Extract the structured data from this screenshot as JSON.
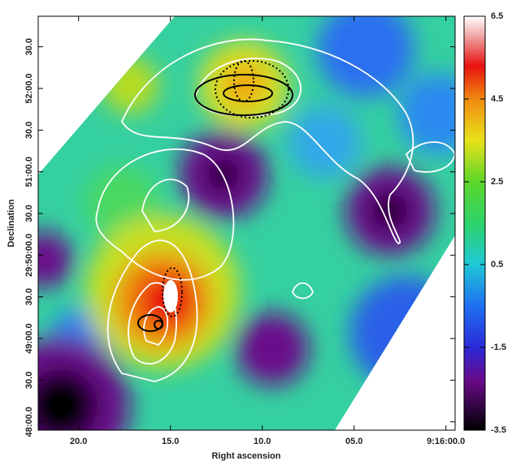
{
  "chart_data": {
    "type": "heatmap",
    "xlabel": "Right ascension",
    "ylabel": "Declination",
    "xlim": [
      22.2,
      -0.5
    ],
    "xticks": [
      {
        "value": 20,
        "label": "20.0"
      },
      {
        "value": 15,
        "label": "15.0"
      },
      {
        "value": 10,
        "label": "10.0"
      },
      {
        "value": 5,
        "label": "05.0"
      },
      {
        "value": 0,
        "label": "9:16:00.0"
      }
    ],
    "ylim": [
      -6,
      292
    ],
    "yticks": [
      {
        "value": 0,
        "label": "48:00.0"
      },
      {
        "value": 30,
        "label": "30.0"
      },
      {
        "value": 60,
        "label": "49:00.0"
      },
      {
        "value": 90,
        "label": "30.0"
      },
      {
        "value": 120,
        "label": "29:50:00.0"
      },
      {
        "value": 150,
        "label": "30.0"
      },
      {
        "value": 180,
        "label": "51:00.0"
      },
      {
        "value": 210,
        "label": "30.0"
      },
      {
        "value": 240,
        "label": "52:00.0"
      },
      {
        "value": 270,
        "label": "30.0"
      }
    ],
    "colorbar": {
      "lim": [
        -3.5,
        6.5
      ],
      "ticks": [
        -3.5,
        -1.5,
        0.5,
        2.5,
        4.5,
        6.5
      ]
    }
  }
}
